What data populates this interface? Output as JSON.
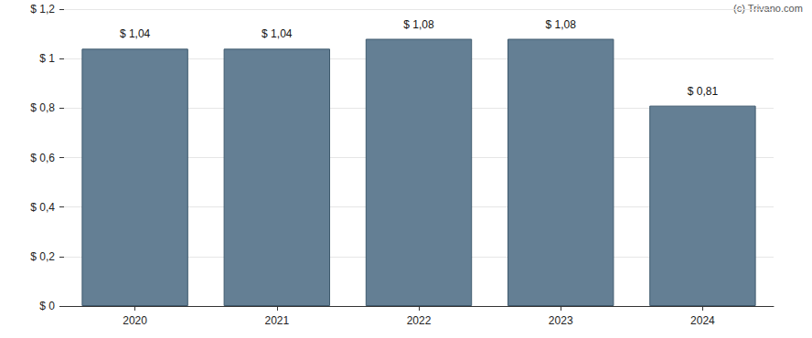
{
  "chart_data": {
    "type": "bar",
    "categories": [
      "2020",
      "2021",
      "2022",
      "2023",
      "2024"
    ],
    "values": [
      1.04,
      1.04,
      1.08,
      1.08,
      0.81
    ],
    "value_labels": [
      "$ 1,04",
      "$ 1,04",
      "$ 1,08",
      "$ 1,08",
      "$ 0,81"
    ],
    "data_labels": true,
    "color": "#647f94",
    "ylim": [
      0,
      1.2
    ],
    "yticks": [
      {
        "value": 0,
        "label": "$ 0"
      },
      {
        "value": 0.2,
        "label": "$ 0,2"
      },
      {
        "value": 0.4,
        "label": "$ 0,4"
      },
      {
        "value": 0.6,
        "label": "$ 0,6"
      },
      {
        "value": 0.8,
        "label": "$ 0,8"
      },
      {
        "value": 1,
        "label": "$ 1"
      },
      {
        "value": 1.2,
        "label": "$ 1,2"
      }
    ],
    "grid": true,
    "annotations": [
      "(c) Trivano.com"
    ]
  }
}
